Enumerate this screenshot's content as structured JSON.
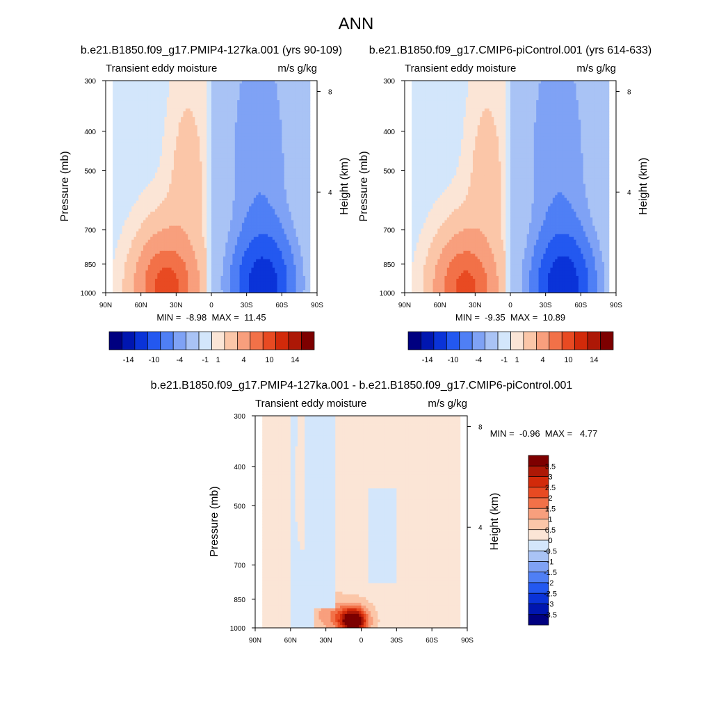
{
  "figure": {
    "title": "ANN"
  },
  "chart_data": [
    {
      "type": "heatmap",
      "title": "b.e21.B1850.f09_g17.PMIP4-127ka.001 (yrs 90-109)",
      "left_header": "Transient eddy moisture",
      "right_header": "m/s g/kg",
      "xlabel": "",
      "ylabel": "Pressure (mb)",
      "ylabel_right": "Height (km)",
      "x_ticks": [
        "90N",
        "60N",
        "30N",
        "0",
        "30S",
        "60S",
        "90S"
      ],
      "x_values": [
        90,
        60,
        30,
        0,
        -30,
        -60,
        -90
      ],
      "y_ticks": [
        "300",
        "400",
        "500",
        "700",
        "850",
        "1000"
      ],
      "y_values": [
        300,
        400,
        500,
        700,
        850,
        1000
      ],
      "y_right_ticks": [
        "8",
        "4"
      ],
      "y_right_values": [
        8,
        4
      ],
      "ylim": [
        1000,
        300
      ],
      "xlim": [
        90,
        -90
      ],
      "y_scale": "log",
      "stats": "MIN =  -8.98  MAX =  11.45",
      "min": -8.98,
      "max": 11.45,
      "field": {
        "pos_center_lat": 38,
        "pos_center_p": 960,
        "pos_amp": 11.45,
        "neg_center_lat": -44,
        "neg_center_p": 950,
        "neg_amp": -8.98
      },
      "levels": [
        -14,
        -10,
        -7,
        -4,
        -2,
        -1,
        0,
        1,
        2,
        4,
        7,
        10,
        14
      ],
      "colorbar_labels": [
        "-14",
        "-10",
        "-4",
        "-1",
        "1",
        "4",
        "10",
        "14"
      ],
      "colorbar_orientation": "horizontal",
      "grid": false
    },
    {
      "type": "heatmap",
      "title": "b.e21.B1850.f09_g17.CMIP6-piControl.001 (yrs 614-633)",
      "left_header": "Transient eddy moisture",
      "right_header": "m/s g/kg",
      "xlabel": "",
      "ylabel": "Pressure (mb)",
      "ylabel_right": "Height (km)",
      "x_ticks": [
        "90N",
        "60N",
        "30N",
        "0",
        "30S",
        "60S",
        "90S"
      ],
      "x_values": [
        90,
        60,
        30,
        0,
        -30,
        -60,
        -90
      ],
      "y_ticks": [
        "300",
        "400",
        "500",
        "700",
        "850",
        "1000"
      ],
      "y_values": [
        300,
        400,
        500,
        700,
        850,
        1000
      ],
      "y_right_ticks": [
        "8",
        "4"
      ],
      "y_right_values": [
        8,
        4
      ],
      "ylim": [
        1000,
        300
      ],
      "xlim": [
        90,
        -90
      ],
      "y_scale": "log",
      "stats": "MIN =  -9.35  MAX =  10.89",
      "min": -9.35,
      "max": 10.89,
      "field": {
        "pos_center_lat": 38,
        "pos_center_p": 960,
        "pos_amp": 10.89,
        "neg_center_lat": -45,
        "neg_center_p": 950,
        "neg_amp": -9.35
      },
      "levels": [
        -14,
        -10,
        -7,
        -4,
        -2,
        -1,
        0,
        1,
        2,
        4,
        7,
        10,
        14
      ],
      "colorbar_labels": [
        "-14",
        "-10",
        "-4",
        "-1",
        "1",
        "4",
        "10",
        "14"
      ],
      "colorbar_orientation": "horizontal",
      "grid": false
    },
    {
      "type": "heatmap",
      "title": "b.e21.B1850.f09_g17.PMIP4-127ka.001 - b.e21.B1850.f09_g17.CMIP6-piControl.001",
      "left_header": "Transient eddy moisture",
      "right_header": "m/s g/kg",
      "xlabel": "",
      "ylabel": "Pressure (mb)",
      "ylabel_right": "Height (km)",
      "x_ticks": [
        "90N",
        "60N",
        "30N",
        "0",
        "30S",
        "60S",
        "90S"
      ],
      "x_values": [
        90,
        60,
        30,
        0,
        -30,
        -60,
        -90
      ],
      "y_ticks": [
        "300",
        "400",
        "500",
        "700",
        "850",
        "1000"
      ],
      "y_values": [
        300,
        400,
        500,
        700,
        850,
        1000
      ],
      "y_right_ticks": [
        "8",
        "4"
      ],
      "y_right_values": [
        8,
        4
      ],
      "ylim": [
        1000,
        300
      ],
      "xlim": [
        90,
        -90
      ],
      "y_scale": "log",
      "stats": "MIN =  -0.96  MAX =   4.77",
      "min": -0.96,
      "max": 4.77,
      "field": {
        "pos_center_lat": 7,
        "pos_center_p": 960,
        "pos_amp": 4.77,
        "neg_band_lat": 35,
        "neg_amp": -0.96
      },
      "levels": [
        -3.5,
        -3,
        -2.5,
        -2,
        -1.5,
        -1,
        -0.5,
        0,
        0.5,
        1,
        1.5,
        2,
        2.5,
        3,
        3.5
      ],
      "colorbar_labels": [
        "3.5",
        "3",
        "2.5",
        "2",
        "1.5",
        "1",
        "0.5",
        "0",
        "-0.5",
        "-1",
        "-1.5",
        "-2",
        "-2.5",
        "-3",
        "-3.5"
      ],
      "colorbar_orientation": "vertical",
      "grid": false
    }
  ],
  "colors": {
    "palette": [
      "#000080",
      "#0016b0",
      "#0a33d8",
      "#2358f0",
      "#4f7ff5",
      "#7fa2f5",
      "#a9c3f5",
      "#d3e6fb",
      "#fbe5d6",
      "#fbc6a8",
      "#f89f7d",
      "#f27148",
      "#e84a22",
      "#d22a0a",
      "#ad1806",
      "#7d0000"
    ]
  }
}
